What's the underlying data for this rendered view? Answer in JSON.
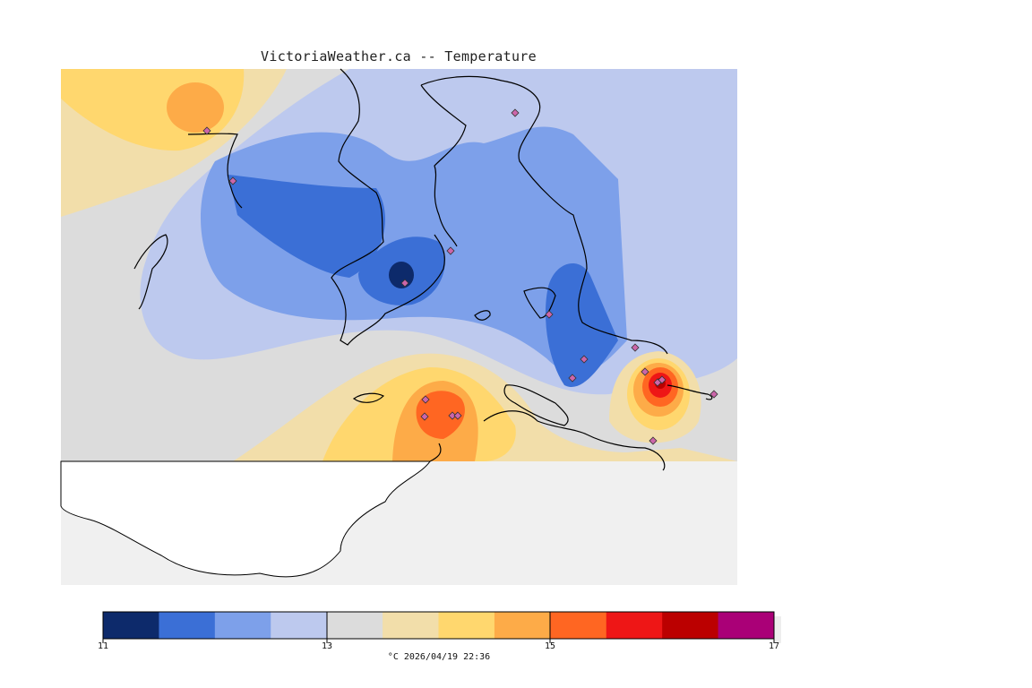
{
  "title": "VictoriaWeather.ca -- Temperature",
  "legend": {
    "min_label": "11",
    "mid_label": "13",
    "mid2_label": "15",
    "max_label": "17",
    "units_label": "°C  2026/04/19 22:36",
    "colors": [
      "#0d2a6b",
      "#3b6fd6",
      "#7da0ea",
      "#bdc9ee",
      "#dcdcdc",
      "#f2deaa",
      "#ffd76e",
      "#fdab48",
      "#ff6622",
      "#ee1616",
      "#bb0000",
      "#aa0077"
    ]
  },
  "map": {
    "background_color": "#f0f0f0",
    "land_color": "#ffffff",
    "station_marker_color": "#cc66aa"
  }
}
